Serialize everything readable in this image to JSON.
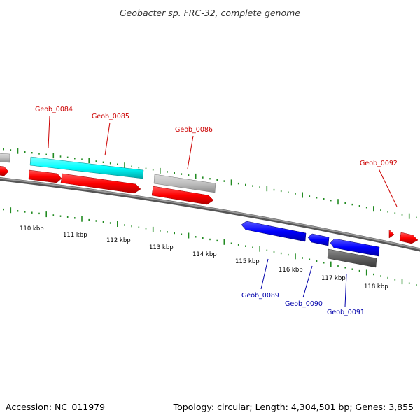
{
  "title": "Geobacter sp. FRC-32, complete genome",
  "footer": {
    "accession": "Accession: NC_011979",
    "stats": "Topology: circular; Length: 4,304,501 bp; Genes: 3,855"
  },
  "colors": {
    "forward_label": "#cc0000",
    "reverse_label": "#0000aa",
    "forward_gene": "#ff0000",
    "reverse_gene": "#0000ff",
    "highlight_gene": "#00ffff",
    "other_gene": "#c0c0c0",
    "dark_gene": "#606060",
    "backbone": "#808080",
    "ticks": "#228b22"
  },
  "scale_labels": [
    "110 kbp",
    "111 kbp",
    "112 kbp",
    "113 kbp",
    "114 kbp",
    "115 kbp",
    "116 kbp",
    "117 kbp",
    "118 kbp"
  ],
  "gene_labels": {
    "geob_0084": "Geob_0084",
    "geob_0085": "Geob_0085",
    "geob_0086": "Geob_0086",
    "geob_0089": "Geob_0089",
    "geob_0090": "Geob_0090",
    "geob_0091": "Geob_0091",
    "geob_0092": "Geob_0092"
  }
}
